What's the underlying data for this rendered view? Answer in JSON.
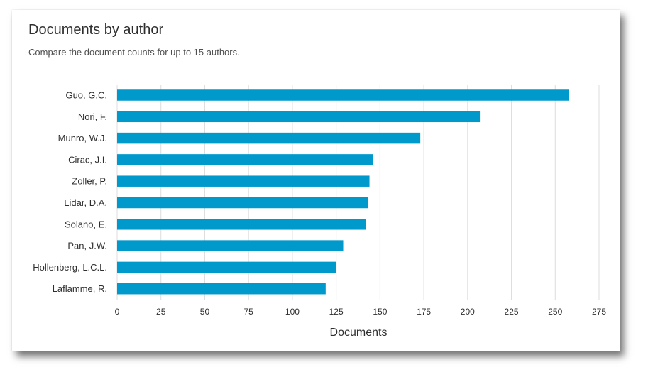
{
  "header": {
    "title": "Documents by author",
    "subtitle": "Compare the document counts for up to 15 authors."
  },
  "colors": {
    "bar": "#0099cc",
    "grid": "#dcdcdc",
    "text": "#2e2e2e"
  },
  "chart_data": {
    "type": "bar",
    "orientation": "horizontal",
    "categories": [
      "Guo, G.C.",
      "Nori, F.",
      "Munro, W.J.",
      "Cirac, J.I.",
      "Zoller, P.",
      "Lidar, D.A.",
      "Solano, E.",
      "Pan, J.W.",
      "Hollenberg, L.C.L.",
      "Laflamme, R."
    ],
    "values": [
      258,
      207,
      173,
      146,
      144,
      143,
      142,
      129,
      125,
      119
    ],
    "xlabel": "Documents",
    "ylabel": "",
    "xlim": [
      0,
      275
    ],
    "xticks": [
      0,
      25,
      50,
      75,
      100,
      125,
      150,
      175,
      200,
      225,
      250,
      275
    ],
    "grid": "vertical"
  }
}
